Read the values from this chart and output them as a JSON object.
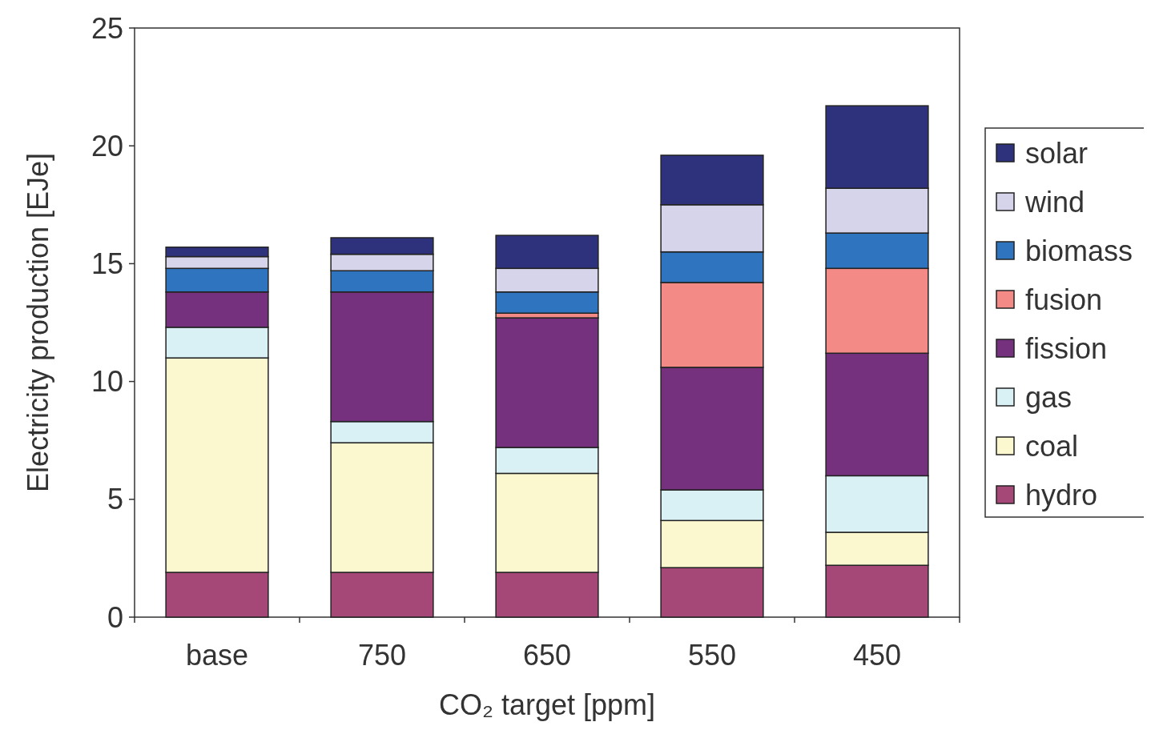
{
  "chart_data": {
    "type": "bar",
    "stacked": true,
    "xlabel": "CO₂ target [ppm]",
    "ylabel": "Electricity production [EJe]",
    "categories": [
      "base",
      "750",
      "650",
      "550",
      "450"
    ],
    "ylim": [
      0,
      25
    ],
    "yticks": [
      0,
      5,
      10,
      15,
      20,
      25
    ],
    "grid": false,
    "legend": "right",
    "series": [
      {
        "name": "hydro",
        "color": "#a64877",
        "values": [
          1.9,
          1.9,
          1.9,
          2.1,
          2.2
        ]
      },
      {
        "name": "coal",
        "color": "#fbf8cf",
        "values": [
          9.1,
          5.5,
          4.2,
          2.0,
          1.4
        ]
      },
      {
        "name": "gas",
        "color": "#d9f0f5",
        "values": [
          1.3,
          0.9,
          1.1,
          1.3,
          2.4
        ]
      },
      {
        "name": "fission",
        "color": "#76317e",
        "values": [
          1.5,
          5.5,
          5.5,
          5.2,
          5.2
        ]
      },
      {
        "name": "fusion",
        "color": "#f48a86",
        "values": [
          0,
          0,
          0.2,
          3.6,
          3.6
        ]
      },
      {
        "name": "biomass",
        "color": "#2e74be",
        "values": [
          1.0,
          0.9,
          0.9,
          1.3,
          1.5
        ]
      },
      {
        "name": "wind",
        "color": "#d6d4ea",
        "values": [
          0.5,
          0.7,
          1.0,
          2.0,
          1.9
        ]
      },
      {
        "name": "solar",
        "color": "#2e317c",
        "values": [
          0.4,
          0.7,
          1.4,
          2.1,
          3.5
        ]
      }
    ]
  }
}
